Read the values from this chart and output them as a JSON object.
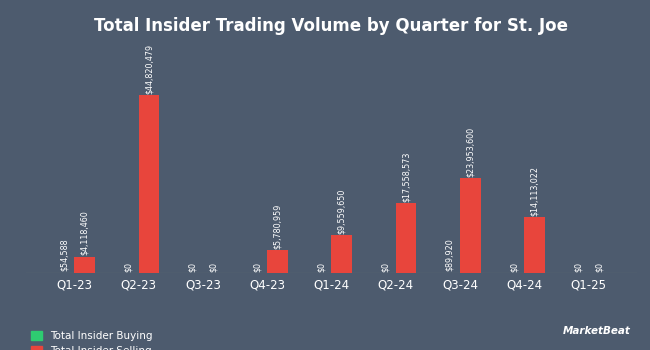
{
  "title": "Total Insider Trading Volume by Quarter for St. Joe",
  "quarters": [
    "Q1-23",
    "Q2-23",
    "Q3-23",
    "Q4-23",
    "Q1-24",
    "Q2-24",
    "Q3-24",
    "Q4-24",
    "Q1-25"
  ],
  "buying": [
    54588,
    0,
    0,
    0,
    0,
    0,
    89920,
    0,
    0
  ],
  "selling": [
    4118460,
    44820479,
    0,
    5780959,
    9559650,
    17558573,
    23953600,
    14113022,
    0
  ],
  "buying_labels": [
    "$54,588",
    "$0",
    "$0",
    "$0",
    "$0",
    "$0",
    "$89,920",
    "$0",
    "$0"
  ],
  "selling_labels": [
    "$4,118,460",
    "$44,820,479",
    "$0",
    "$5,780,959",
    "$9,559,650",
    "$17,558,573",
    "$23,953,600",
    "$14,113,022",
    "$0"
  ],
  "buying_color": "#2ecc71",
  "selling_color": "#e8453c",
  "bg_color": "#4d5b6e",
  "text_color": "#ffffff",
  "legend_buying": "Total Insider Buying",
  "legend_selling": "Total Insider Selling",
  "bar_width": 0.32,
  "label_fontsize": 5.8,
  "title_fontsize": 12,
  "tick_fontsize": 8.5
}
